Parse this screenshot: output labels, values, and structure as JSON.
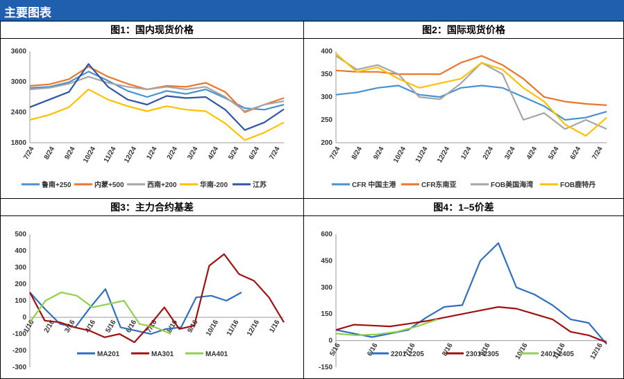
{
  "header": {
    "title": "主要图表"
  },
  "chart_data": [
    {
      "type": "line",
      "title": "图1：国内现货价格",
      "ylim": [
        1800,
        3600
      ],
      "yticks": [
        1800,
        2400,
        3000,
        3600
      ],
      "xticks": [
        "7/24",
        "8/24",
        "9/24",
        "10/24",
        "11/24",
        "12/24",
        "1/24",
        "2/24",
        "3/24",
        "4/24",
        "5/24",
        "6/24",
        "7/24"
      ],
      "legend_position": "bottom",
      "series": [
        {
          "name": "鲁南+250",
          "color": "#4a90d0",
          "values": [
            2880,
            2900,
            2990,
            3200,
            3020,
            2820,
            2700,
            2820,
            2760,
            2850,
            2680,
            2480,
            2450,
            2550
          ]
        },
        {
          "name": "内蒙+500",
          "color": "#e9762b",
          "values": [
            2920,
            2950,
            3050,
            3300,
            3100,
            2960,
            2850,
            2920,
            2900,
            2980,
            2800,
            2400,
            2550,
            2680
          ]
        },
        {
          "name": "西南+200",
          "color": "#a5a5a5",
          "values": [
            2850,
            2880,
            2960,
            3100,
            2980,
            2900,
            2850,
            2900,
            2850,
            2900,
            2700,
            2420,
            2550,
            2620
          ]
        },
        {
          "name": "华南-200",
          "color": "#ffc000",
          "values": [
            2250,
            2350,
            2500,
            2850,
            2650,
            2520,
            2420,
            2520,
            2450,
            2420,
            2180,
            1850,
            2000,
            2200
          ]
        },
        {
          "name": "江苏",
          "color": "#2f55a5",
          "values": [
            2500,
            2650,
            2800,
            3350,
            2900,
            2650,
            2550,
            2720,
            2680,
            2700,
            2450,
            2050,
            2200,
            2460
          ]
        }
      ]
    },
    {
      "type": "line",
      "title": "图2：国际现货价格",
      "ylim": [
        200,
        400
      ],
      "yticks": [
        200,
        250,
        300,
        350,
        400
      ],
      "xticks": [
        "7/24",
        "8/24",
        "9/24",
        "10/24",
        "11/24",
        "12/24",
        "1/24",
        "2/24",
        "3/24",
        "4/24",
        "5/24",
        "6/24",
        "7/24"
      ],
      "legend_position": "bottom",
      "series": [
        {
          "name": "CFR 中国主港",
          "color": "#4a90d0",
          "values": [
            305,
            310,
            320,
            325,
            305,
            300,
            320,
            325,
            320,
            300,
            280,
            250,
            255,
            268
          ]
        },
        {
          "name": "CFR东南亚",
          "color": "#e9762b",
          "values": [
            358,
            355,
            355,
            350,
            350,
            350,
            375,
            390,
            370,
            340,
            300,
            290,
            285,
            282
          ]
        },
        {
          "name": "FOB美国海湾",
          "color": "#a5a5a5",
          "values": [
            390,
            360,
            370,
            350,
            300,
            295,
            330,
            375,
            350,
            250,
            265,
            230,
            250,
            230
          ]
        },
        {
          "name": "FOB鹿特丹",
          "color": "#ffc000",
          "values": [
            395,
            355,
            365,
            340,
            320,
            330,
            340,
            375,
            360,
            320,
            290,
            240,
            215,
            255
          ]
        }
      ]
    },
    {
      "type": "line",
      "title": "图3：主力合约基差",
      "ylim": [
        -300,
        500
      ],
      "yticks": [
        -300,
        -200,
        -100,
        0,
        100,
        200,
        300,
        400,
        500
      ],
      "xticks": [
        "1/16",
        "2/16",
        "3/16",
        "4/16",
        "5/16",
        "6/16",
        "7/16",
        "8/16",
        "9/16",
        "10/16",
        "11/16",
        "12/16",
        "1/16"
      ],
      "legend_position": "bottom",
      "series": [
        {
          "name": "MA201",
          "color": "#2f6fc0",
          "values": [
            150,
            50,
            -40,
            -60,
            60,
            170,
            -60,
            -80,
            -100,
            -70,
            -60,
            120,
            130,
            100,
            150
          ]
        },
        {
          "name": "MA301",
          "color": "#a01010",
          "values": [
            150,
            -20,
            -30,
            -60,
            -80,
            -120,
            -100,
            -150,
            -50,
            60,
            -70,
            -50,
            310,
            380,
            260,
            220,
            120,
            -30
          ]
        },
        {
          "name": "MA401",
          "color": "#8fd14f",
          "values": [
            -30,
            100,
            150,
            130,
            60,
            80,
            100,
            -40,
            -60,
            -100
          ]
        }
      ]
    },
    {
      "type": "line",
      "title": "图4：1–5价差",
      "ylim": [
        -150,
        600
      ],
      "yticks": [
        -150,
        0,
        150,
        300,
        450,
        600
      ],
      "xticks": [
        "5/16",
        "6/16",
        "7/16",
        "8/16",
        "9/16",
        "10/16",
        "11/16",
        "12/16"
      ],
      "legend_position": "bottom",
      "series": [
        {
          "name": "2201-2205",
          "color": "#2f6fc0",
          "values": [
            60,
            40,
            20,
            40,
            60,
            130,
            190,
            200,
            450,
            550,
            300,
            260,
            200,
            120,
            100,
            -20
          ]
        },
        {
          "name": "2301-2305",
          "color": "#a01010",
          "values": [
            60,
            90,
            85,
            80,
            95,
            110,
            130,
            150,
            170,
            190,
            180,
            150,
            120,
            50,
            30,
            -10
          ]
        },
        {
          "name": "2401-2405",
          "color": "#8fd14f",
          "values": [
            40,
            30,
            35,
            50,
            80,
            120
          ]
        }
      ]
    }
  ]
}
